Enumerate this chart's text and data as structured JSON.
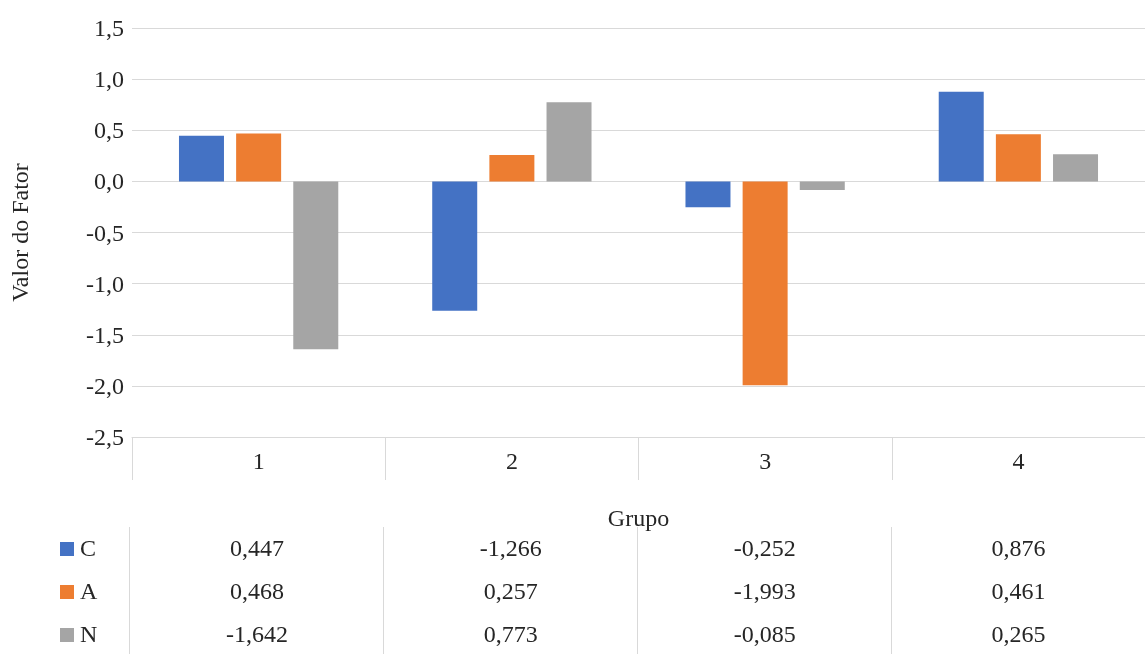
{
  "chart_data": {
    "type": "bar",
    "xlabel": "Grupo",
    "ylabel": "Valor do Fator",
    "categories": [
      "1",
      "2",
      "3",
      "4"
    ],
    "series": [
      {
        "name": "C",
        "color": "#4472c4",
        "values": [
          0.447,
          -1.266,
          -0.252,
          0.876
        ],
        "value_labels": [
          "0,447",
          "-1,266",
          "-0,252",
          "0,876"
        ]
      },
      {
        "name": "A",
        "color": "#ed7d31",
        "values": [
          0.468,
          0.257,
          -1.993,
          0.461
        ],
        "value_labels": [
          "0,468",
          "0,257",
          "-1,993",
          "0,461"
        ]
      },
      {
        "name": "N",
        "color": "#a5a5a5",
        "values": [
          -1.642,
          0.773,
          -0.085,
          0.265
        ],
        "value_labels": [
          "-1,642",
          "0,773",
          "-0,085",
          "0,265"
        ]
      }
    ],
    "ylim": [
      -2.5,
      1.5
    ],
    "yticks": [
      {
        "value": -2.5,
        "label": "-2,5"
      },
      {
        "value": -2,
        "label": "-2,0"
      },
      {
        "value": -1.5,
        "label": "-1,5"
      },
      {
        "value": -1,
        "label": "-1,0"
      },
      {
        "value": -0.5,
        "label": "-0,5"
      },
      {
        "value": 0,
        "label": "0,0"
      },
      {
        "value": 0.5,
        "label": "0,5"
      },
      {
        "value": 1,
        "label": "1,0"
      },
      {
        "value": 1.5,
        "label": "1,5"
      }
    ],
    "grid": "y",
    "legend": "bottom"
  }
}
